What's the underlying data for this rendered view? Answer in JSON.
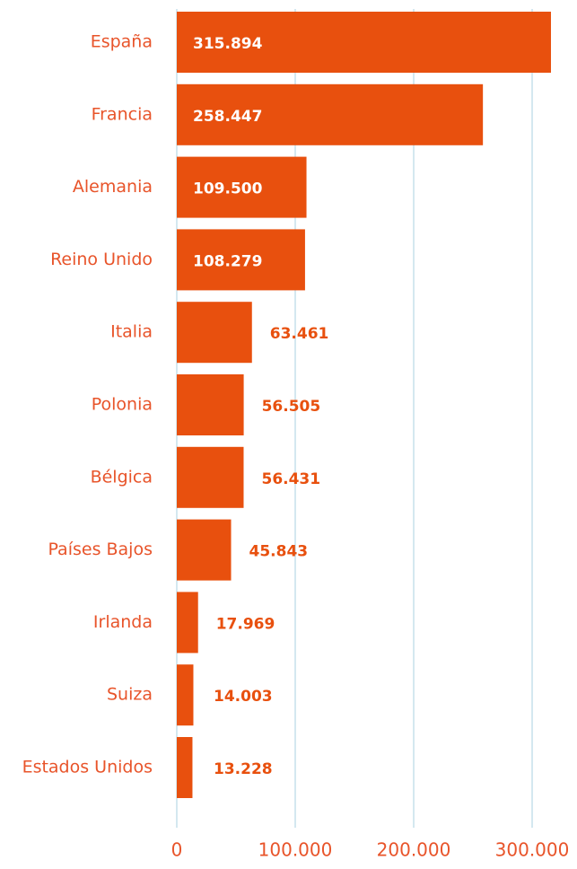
{
  "chart_data": {
    "type": "bar",
    "orientation": "horizontal",
    "categories": [
      "España",
      "Francia",
      "Alemania",
      "Reino Unido",
      "Italia",
      "Polonia",
      "Bélgica",
      "Países Bajos",
      "Irlanda",
      "Suiza",
      "Estados Unidos"
    ],
    "values": [
      315894,
      258447,
      109500,
      108279,
      63461,
      56505,
      56431,
      45843,
      17969,
      14003,
      13228
    ],
    "value_labels": [
      "315.894",
      "258.447",
      "109.500",
      "108.279",
      "63.461",
      "56.505",
      "56.431",
      "45.843",
      "17.969",
      "14.003",
      "13.228"
    ],
    "color": "#e8500e",
    "xlim": [
      0,
      330000
    ],
    "xticks": [
      0,
      {
        "value": 100000,
        "label": "100.000"
      },
      {
        "value": 200000,
        "label": "200.000"
      },
      {
        "value": 300000,
        "label": "300.000"
      }
    ],
    "grid": true
  }
}
